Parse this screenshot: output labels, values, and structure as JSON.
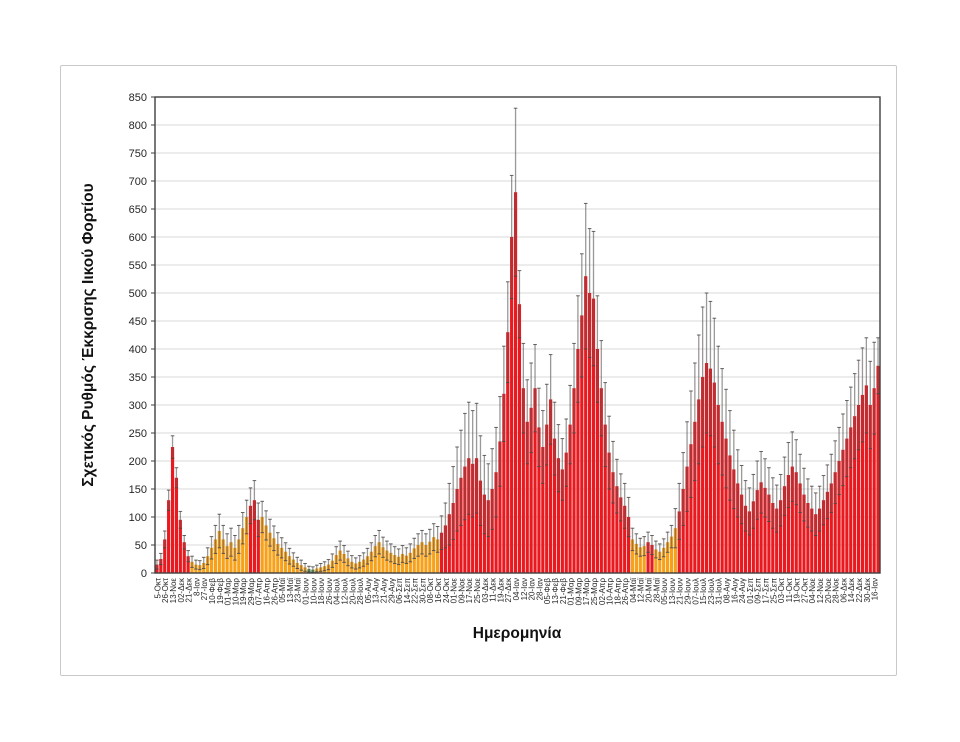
{
  "page": {
    "background": "#ffffff",
    "border_color": "#c9c9c9"
  },
  "chart_data": {
    "type": "bar",
    "title": "",
    "xlabel": "Ημερομηνία",
    "ylabel": "Σχετικός Ρυθμός Έκκρισης Ιικού Φορτίου",
    "ylim": [
      0,
      850
    ],
    "ytick_step": 50,
    "yticks": [
      0,
      50,
      100,
      150,
      200,
      250,
      300,
      350,
      400,
      450,
      500,
      550,
      600,
      650,
      700,
      750,
      800,
      850
    ],
    "grid": true,
    "legend_position": "none",
    "error_bars": true,
    "bars_per_label": 2,
    "colors": {
      "red": "#e8191f",
      "orange": "#f7a11a",
      "green": "#4a8a4a",
      "error_line": "#5f5b59",
      "error_cap": "#4a4745",
      "grid": "#d9d9d9",
      "frame": "#3f3f3f",
      "text": "#262626"
    },
    "categories": [
      "5-Οκτ",
      "26-Οκτ",
      "13-Νοε",
      "02-Δεκ",
      "21-Δεκ",
      "8-Ιαν",
      "27-Ιαν",
      "10-Φεβ",
      "19-Φεβ",
      "01-Μαρ",
      "10-Μαρ",
      "19-Μαρ",
      "29-Μαρ",
      "07-Απρ",
      "16-Απρ",
      "26-Απρ",
      "05-Μαϊ",
      "13-Μαϊ",
      "23-Μαϊ",
      "01-Ιουν",
      "10-Ιουν",
      "18-Ιουν",
      "26-Ιουν",
      "04-Ιουλ",
      "12-Ιουλ",
      "20-Ιουλ",
      "28-Ιουλ",
      "05-Αυγ",
      "13-Αυγ",
      "21-Αυγ",
      "29-Αυγ",
      "06-Σεπ",
      "14-Σεπ",
      "22-Σεπ",
      "30-Σεπ",
      "08-Οκτ",
      "16-Οκτ",
      "24-Οκτ",
      "01-Νοε",
      "09-Νοε",
      "17-Νοε",
      "25-Νοε",
      "03-Δεκ",
      "11-Δεκ",
      "19-Δεκ",
      "27-Δεκ",
      "04-Ιαν",
      "12-Ιαν",
      "20-Ιαν",
      "28-Ιαν",
      "05-Φεβ",
      "13-Φεβ",
      "21-Φεβ",
      "01-Μαρ",
      "09-Μαρ",
      "17-Μαρ",
      "25-Μαρ",
      "02-Απρ",
      "10-Απρ",
      "18-Απρ",
      "26-Απρ",
      "04-Μαϊ",
      "12-Μαϊ",
      "20-Μαϊ",
      "28-Μαϊ",
      "05-Ιουν",
      "13-Ιουν",
      "21-Ιουν",
      "29-Ιουν",
      "07-Ιουλ",
      "15-Ιουλ",
      "23-Ιουλ",
      "31-Ιουλ",
      "08-Αυγ",
      "16-Αυγ",
      "24-Αυγ",
      "01-Σεπ",
      "09-Σεπ",
      "17-Σεπ",
      "25-Σεπ",
      "03-Οκτ",
      "11-Οκτ",
      "19-Οκτ",
      "27-Οκτ",
      "04-Νοε",
      "12-Νοε",
      "20-Νοε",
      "28-Νοε",
      "06-Δεκ",
      "14-Δεκ",
      "22-Δεκ",
      "30-Δεκ",
      "16-Ιαν"
    ],
    "series": [
      {
        "name": "Σχετικός Ρυθμός Έκκρισης Ιικού Φορτίου",
        "values": [
          15,
          25,
          60,
          130,
          225,
          170,
          95,
          55,
          30,
          20,
          15,
          14,
          18,
          30,
          45,
          60,
          75,
          60,
          48,
          55,
          45,
          60,
          80,
          100,
          120,
          130,
          95,
          100,
          85,
          72,
          62,
          52,
          45,
          38,
          30,
          24,
          18,
          14,
          10,
          7,
          6,
          8,
          10,
          12,
          15,
          22,
          32,
          40,
          34,
          26,
          20,
          17,
          20,
          24,
          30,
          38,
          48,
          55,
          46,
          40,
          36,
          32,
          29,
          34,
          31,
          36,
          44,
          50,
          55,
          50,
          56,
          64,
          60,
          72,
          85,
          105,
          125,
          150,
          170,
          190,
          205,
          195,
          205,
          165,
          140,
          130,
          150,
          180,
          235,
          320,
          430,
          600,
          680,
          480,
          330,
          270,
          295,
          330,
          260,
          225,
          265,
          310,
          240,
          205,
          185,
          215,
          265,
          330,
          400,
          460,
          530,
          500,
          490,
          400,
          330,
          265,
          215,
          180,
          155,
          135,
          120,
          100,
          60,
          52,
          46,
          48,
          55,
          50,
          42,
          38,
          45,
          55,
          65,
          80,
          110,
          150,
          190,
          230,
          270,
          310,
          350,
          375,
          365,
          340,
          300,
          270,
          240,
          210,
          185,
          160,
          140,
          120,
          110,
          128,
          148,
          162,
          152,
          140,
          125,
          115,
          130,
          155,
          175,
          190,
          180,
          160,
          140,
          125,
          115,
          105,
          115,
          130,
          145,
          160,
          180,
          200,
          220,
          240,
          260,
          280,
          300,
          318,
          335,
          300,
          330,
          370
        ],
        "errors": [
          8,
          10,
          15,
          18,
          20,
          18,
          15,
          12,
          10,
          10,
          8,
          8,
          10,
          15,
          20,
          25,
          30,
          25,
          22,
          25,
          22,
          25,
          28,
          30,
          32,
          35,
          30,
          28,
          26,
          24,
          22,
          20,
          18,
          16,
          14,
          12,
          10,
          9,
          7,
          5,
          5,
          6,
          7,
          8,
          9,
          12,
          15,
          17,
          15,
          13,
          11,
          10,
          11,
          12,
          14,
          16,
          19,
          21,
          18,
          17,
          16,
          15,
          14,
          15,
          14,
          16,
          18,
          20,
          21,
          20,
          22,
          24,
          23,
          30,
          40,
          55,
          65,
          75,
          85,
          95,
          100,
          95,
          98,
          80,
          70,
          65,
          72,
          80,
          80,
          85,
          90,
          110,
          150,
          60,
          80,
          75,
          80,
          78,
          70,
          65,
          72,
          80,
          65,
          60,
          55,
          60,
          70,
          80,
          95,
          110,
          130,
          115,
          120,
          95,
          85,
          75,
          65,
          55,
          48,
          42,
          40,
          35,
          20,
          18,
          16,
          17,
          18,
          17,
          15,
          14,
          16,
          18,
          20,
          35,
          50,
          65,
          80,
          95,
          105,
          115,
          125,
          125,
          120,
          115,
          105,
          95,
          88,
          80,
          70,
          60,
          52,
          45,
          42,
          48,
          52,
          55,
          52,
          48,
          45,
          42,
          46,
          52,
          58,
          62,
          58,
          52,
          47,
          43,
          40,
          38,
          40,
          44,
          48,
          52,
          56,
          60,
          64,
          68,
          72,
          76,
          80,
          84,
          85,
          78,
          82,
          50
        ],
        "bar_colors": "rrrrrrrrrooooooooooooooorrrooooooooooooggoooooooooooooooooooooooooooooooorrrrrrrrrrrrrrrrrrrrrrrrrrrrrrrrrrrrrrrrrrrrrrrrroooorroooooorrrrrrrrrrrrrrrrrrrrrrrrrrrrrrrrrrrrrrrrrrrrrrrrrrrr"
      }
    ]
  }
}
